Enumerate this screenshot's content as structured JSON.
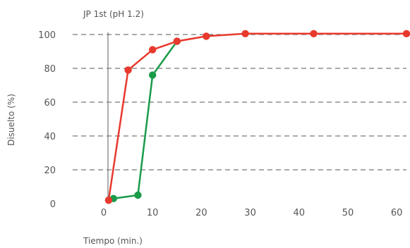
{
  "chart_data": {
    "type": "line",
    "title": "JP 1st (pH 1.2)",
    "xlabel": "Tiempo (min.)",
    "ylabel": "Disuelto (%)",
    "xlim": [
      0,
      62
    ],
    "ylim": [
      0,
      100
    ],
    "x_ticks": [
      0,
      10,
      20,
      30,
      40,
      50,
      60
    ],
    "y_ticks": [
      0,
      20,
      40,
      60,
      80,
      100
    ],
    "grid": "horizontal-dashed",
    "series": [
      {
        "color": "#1a9b4a",
        "points": [
          [
            1,
            2
          ],
          [
            2,
            3
          ],
          [
            7,
            5
          ],
          [
            10,
            76
          ],
          [
            15,
            96
          ]
        ]
      },
      {
        "color": "#e8392d",
        "points": [
          [
            1,
            2
          ],
          [
            5,
            79
          ],
          [
            10,
            91
          ],
          [
            15,
            96
          ],
          [
            21,
            99
          ],
          [
            29,
            100.5
          ],
          [
            43,
            100.5
          ],
          [
            62,
            100.5
          ]
        ]
      }
    ]
  }
}
